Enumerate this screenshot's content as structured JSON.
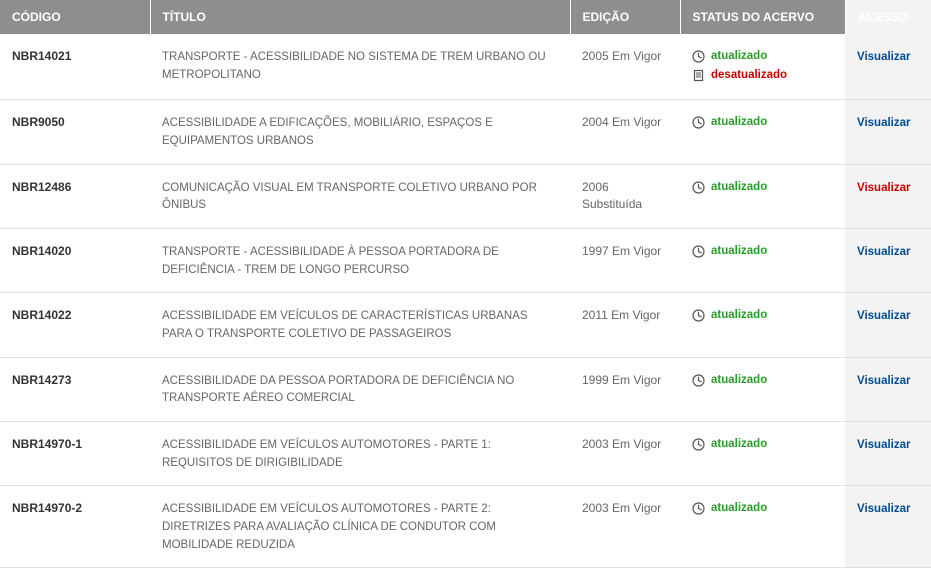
{
  "colors": {
    "header_bg": "#8e8e8e",
    "header_text": "#ffffff",
    "row_border": "#e0e0e0",
    "codigo_text": "#333333",
    "titulo_text": "#666666",
    "edicao_text": "#666666",
    "status_atualizado": "#2a9b2a",
    "status_desatualizado": "#c40000",
    "acesso_normal": "#004a8f",
    "acesso_red": "#c40000",
    "acesso_col_bg": "#f3f3f3"
  },
  "columns": [
    {
      "key": "codigo",
      "label": "CÓDIGO"
    },
    {
      "key": "titulo",
      "label": "TÍTULO"
    },
    {
      "key": "edicao",
      "label": "EDIÇÃO"
    },
    {
      "key": "status",
      "label": "STATUS DO ACERVO"
    },
    {
      "key": "acesso",
      "label": "ACESSO"
    }
  ],
  "rows": [
    {
      "codigo": "NBR14021",
      "titulo": "TRANSPORTE - ACESSIBILIDADE NO SISTEMA DE TREM URBANO OU METROPOLITANO",
      "edicao": "2005 Em Vigor",
      "status": [
        {
          "icon": "clock-icon",
          "text": "atualizado",
          "color": "#2a9b2a"
        },
        {
          "icon": "doc-icon",
          "text": "desatualizado",
          "color": "#c40000"
        }
      ],
      "acesso": {
        "text": "Visualizar",
        "color": "#004a8f"
      }
    },
    {
      "codigo": "NBR9050",
      "titulo": "ACESSIBILIDADE A EDIFICAÇÕES, MOBILIÁRIO, ESPAÇOS E EQUIPAMENTOS URBANOS",
      "edicao": "2004 Em Vigor",
      "status": [
        {
          "icon": "clock-icon",
          "text": "atualizado",
          "color": "#2a9b2a"
        }
      ],
      "acesso": {
        "text": "Visualizar",
        "color": "#004a8f"
      }
    },
    {
      "codigo": "NBR12486",
      "titulo": "COMUNICAÇÃO VISUAL EM TRANSPORTE COLETIVO URBANO POR ÔNIBUS",
      "edicao": "2006 Substituída",
      "status": [
        {
          "icon": "clock-icon",
          "text": "atualizado",
          "color": "#2a9b2a"
        }
      ],
      "acesso": {
        "text": "Visualizar",
        "color": "#c40000"
      }
    },
    {
      "codigo": "NBR14020",
      "titulo": "TRANSPORTE - ACESSIBILIDADE À PESSOA PORTADORA DE DEFICIÊNCIA - TREM DE LONGO PERCURSO",
      "edicao": "1997 Em Vigor",
      "status": [
        {
          "icon": "clock-icon",
          "text": "atualizado",
          "color": "#2a9b2a"
        }
      ],
      "acesso": {
        "text": "Visualizar",
        "color": "#004a8f"
      }
    },
    {
      "codigo": "NBR14022",
      "titulo": "ACESSIBILIDADE EM VEÍCULOS DE CARACTERÍSTICAS URBANAS PARA O TRANSPORTE COLETIVO DE PASSAGEIROS",
      "edicao": "2011 Em Vigor",
      "status": [
        {
          "icon": "clock-icon",
          "text": "atualizado",
          "color": "#2a9b2a"
        }
      ],
      "acesso": {
        "text": "Visualizar",
        "color": "#004a8f"
      }
    },
    {
      "codigo": "NBR14273",
      "titulo": "ACESSIBILIDADE DA PESSOA PORTADORA DE DEFICIÊNCIA NO TRANSPORTE AÉREO COMERCIAL",
      "edicao": "1999 Em Vigor",
      "status": [
        {
          "icon": "clock-icon",
          "text": "atualizado",
          "color": "#2a9b2a"
        }
      ],
      "acesso": {
        "text": "Visualizar",
        "color": "#004a8f"
      }
    },
    {
      "codigo": "NBR14970-1",
      "titulo": "ACESSIBILIDADE EM VEÍCULOS AUTOMOTORES - PARTE 1: REQUISITOS DE DIRIGIBILIDADE",
      "edicao": "2003 Em Vigor",
      "status": [
        {
          "icon": "clock-icon",
          "text": "atualizado",
          "color": "#2a9b2a"
        }
      ],
      "acesso": {
        "text": "Visualizar",
        "color": "#004a8f"
      }
    },
    {
      "codigo": "NBR14970-2",
      "titulo": "ACESSIBILIDADE EM VEÍCULOS AUTOMOTORES - PARTE 2: DIRETRIZES PARA AVALIAÇÃO CLÍNICA DE CONDUTOR COM MOBILIDADE REDUZIDA",
      "edicao": "2003 Em Vigor",
      "status": [
        {
          "icon": "clock-icon",
          "text": "atualizado",
          "color": "#2a9b2a"
        }
      ],
      "acesso": {
        "text": "Visualizar",
        "color": "#004a8f"
      }
    }
  ]
}
